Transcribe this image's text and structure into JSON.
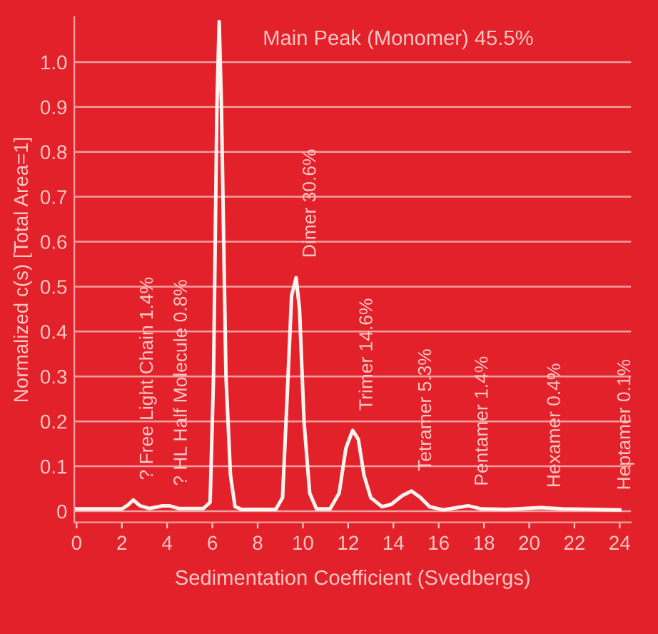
{
  "chart_data": {
    "type": "line",
    "xlabel": "Sedimentation Coefficient (Svedbergs)",
    "ylabel": "Normalized c(s) [Total Area=1]",
    "series": [
      {
        "color": "#fff4f0",
        "x": [
          0,
          2.0,
          2.3,
          2.5,
          2.8,
          3.2,
          3.8,
          4.1,
          4.5,
          5.6,
          5.9,
          6.05,
          6.2,
          6.3,
          6.4,
          6.6,
          6.8,
          7.0,
          7.3,
          8.8,
          9.1,
          9.3,
          9.5,
          9.7,
          9.85,
          10.05,
          10.3,
          10.6,
          11.2,
          11.6,
          11.9,
          12.2,
          12.45,
          12.7,
          13.0,
          13.5,
          13.9,
          14.4,
          14.8,
          15.2,
          15.6,
          16.2,
          16.8,
          17.3,
          17.9,
          19.0,
          20.5,
          21.5,
          24
        ],
        "values": [
          0.005,
          0.005,
          0.015,
          0.025,
          0.012,
          0.006,
          0.012,
          0.012,
          0.006,
          0.006,
          0.02,
          0.3,
          0.9,
          1.09,
          0.9,
          0.3,
          0.08,
          0.01,
          0.004,
          0.004,
          0.03,
          0.25,
          0.48,
          0.52,
          0.45,
          0.2,
          0.04,
          0.005,
          0.005,
          0.04,
          0.14,
          0.18,
          0.16,
          0.08,
          0.03,
          0.01,
          0.015,
          0.035,
          0.045,
          0.03,
          0.01,
          0.003,
          0.008,
          0.012,
          0.005,
          0.004,
          0.008,
          0.005,
          0.003
        ]
      }
    ],
    "xlim": [
      -0.1,
      24.5
    ],
    "xticks": [
      0,
      2,
      4,
      6,
      8,
      10,
      12,
      14,
      16,
      18,
      20,
      22,
      24
    ],
    "ylim": [
      -0.025,
      1.1
    ],
    "yticks": [
      0,
      0.1,
      0.2,
      0.3,
      0.4,
      0.5,
      0.6,
      0.7,
      0.8,
      0.9,
      {
        "value": 1.0,
        "label": "1.0"
      }
    ],
    "grid": "y",
    "line_style": "solid",
    "annotations": [
      {
        "text": "Main Peak (Monomer) 45.5%",
        "x": 6.3,
        "y": 1.05
      },
      {
        "text": "? Free Light Chain 1.4%",
        "x": 2.5,
        "y": 0.025
      },
      {
        "text": "? HL Half Molecule 0.8%",
        "x": 4.0,
        "y": 0.012
      },
      {
        "text": "Dimer 30.6%",
        "x": 9.7,
        "y": 0.52
      },
      {
        "text": "Trimer 14.6%",
        "x": 12.2,
        "y": 0.18
      },
      {
        "text": "Tetramer 5.3%",
        "x": 14.8,
        "y": 0.045
      },
      {
        "text": "Pentamer 1.4%",
        "x": 17.3,
        "y": 0.012
      },
      {
        "text": "Hexamer 0.4%",
        "x": 20.5,
        "y": 0.008
      },
      {
        "text": "Heptamer 0.1%",
        "x": 23.6,
        "y": 0.003
      }
    ]
  }
}
